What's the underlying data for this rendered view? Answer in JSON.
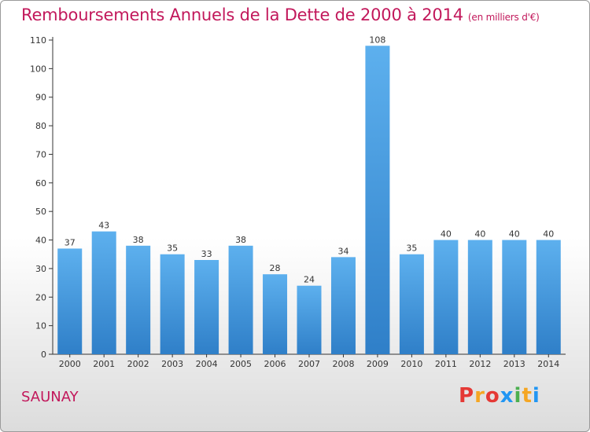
{
  "chart_data": {
    "type": "bar",
    "title": "Remboursements Annuels de la Dette de 2000 à 2014",
    "subtitle": "(en milliers d'€)",
    "categories": [
      "2000",
      "2001",
      "2002",
      "2003",
      "2004",
      "2005",
      "2006",
      "2007",
      "2008",
      "2009",
      "2010",
      "2011",
      "2012",
      "2013",
      "2014"
    ],
    "values": [
      37,
      43,
      38,
      35,
      33,
      38,
      28,
      24,
      34,
      108,
      35,
      40,
      40,
      40,
      40
    ],
    "ylim": [
      0,
      110
    ],
    "yticks": [
      0,
      10,
      20,
      30,
      40,
      50,
      60,
      70,
      80,
      90,
      100,
      110
    ],
    "grid": false,
    "bar_color": "#4a9fe0"
  },
  "footer": {
    "place": "SAUNAY",
    "logo": "Proxiti",
    "logo_colors": [
      "#e53935",
      "#f5a623",
      "#e53935",
      "#2196f3",
      "#4caf50",
      "#f5a623",
      "#2196f3"
    ]
  }
}
